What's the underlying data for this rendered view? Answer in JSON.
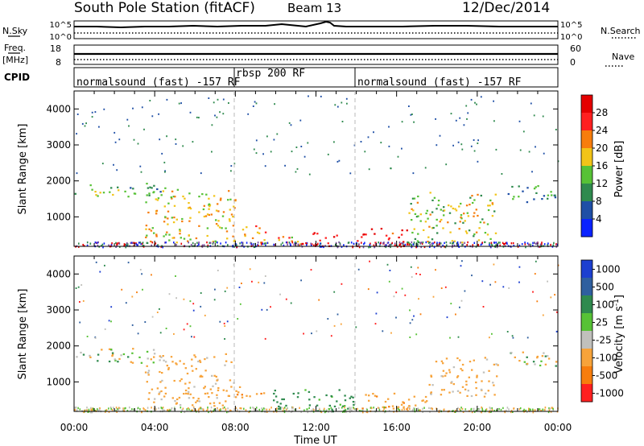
{
  "header": {
    "title": "South Pole Station (fitACF)",
    "beam": "Beam 13",
    "date": "12/Dec/2014"
  },
  "noise_panel": {
    "left_label": "N.Sky",
    "right_label": "N.Search",
    "left_ticks": [
      "10^5",
      "10^0"
    ],
    "right_ticks": [
      "10^5",
      "10^0"
    ]
  },
  "freq_panel": {
    "left_label": "Freq.",
    "left_unit": "[MHz]",
    "right_label": "Nave",
    "left_ticks": [
      "18",
      "8"
    ],
    "right_ticks": [
      "60",
      "0"
    ]
  },
  "cpid": {
    "label": "CPID",
    "segments": [
      {
        "label": "normalsound (fast) -157 RF",
        "start_hour": 0,
        "end_hour": 8
      },
      {
        "label": "rbsp 200 RF",
        "start_hour": 8,
        "end_hour": 14
      },
      {
        "label": "normalsound (fast) -157 RF",
        "start_hour": 14,
        "end_hour": 24
      }
    ]
  },
  "chart_data": [
    {
      "type": "heatmap",
      "quantity": "Power",
      "ylabel": "Slant Range [km]",
      "xlabel": "",
      "ylim": [
        180,
        4500
      ],
      "yticks": [
        1000,
        2000,
        3000,
        4000
      ],
      "colorbar_label": "Power [dB]",
      "colorbar_ticks": [
        "4",
        "8",
        "12",
        "16",
        "20",
        "24",
        "28"
      ],
      "colorbar_range": [
        0,
        32
      ],
      "colors": [
        "#0a22ff",
        "#1f4fa6",
        "#2f8a4e",
        "#57c236",
        "#f2c418",
        "#f77d0d",
        "#ff2020",
        "#e40000"
      ],
      "regions": [
        {
          "t": [
            0.0,
            4.5
          ],
          "r": [
            1550,
            1950
          ],
          "v": 13
        },
        {
          "t": [
            3.5,
            8.0
          ],
          "r": [
            300,
            1800
          ],
          "v": 18
        },
        {
          "t": [
            7.8,
            9.5
          ],
          "r": [
            300,
            800
          ],
          "v": 22
        },
        {
          "t": [
            9.5,
            11.5
          ],
          "r": [
            200,
            500
          ],
          "v": 20
        },
        {
          "t": [
            11.5,
            13.0
          ],
          "r": [
            200,
            600
          ],
          "v": 28
        },
        {
          "t": [
            14.0,
            16.5
          ],
          "r": [
            200,
            700
          ],
          "v": 27
        },
        {
          "t": [
            16.5,
            21.0
          ],
          "r": [
            300,
            1700
          ],
          "v": 16
        },
        {
          "t": [
            21.5,
            24.0
          ],
          "r": [
            1400,
            1900
          ],
          "v": 11
        }
      ]
    },
    {
      "type": "heatmap",
      "quantity": "Velocity",
      "ylabel": "Slant Range [km]",
      "xlabel": "Time UT",
      "xticks": [
        "00:00",
        "04:00",
        "08:00",
        "12:00",
        "16:00",
        "20:00",
        "00:00"
      ],
      "xlim": [
        0,
        24
      ],
      "ylim": [
        180,
        4500
      ],
      "yticks": [
        1000,
        2000,
        3000,
        4000
      ],
      "colorbar_label": "Velocity [m s^-1]",
      "colorbar_ticks": [
        "1000",
        "500",
        "100",
        "25",
        "-25",
        "-100",
        "-500",
        "-1000"
      ],
      "colors": [
        "#1c3fd0",
        "#2f5f9f",
        "#2f8a4e",
        "#57c236",
        "#c0c0bc",
        "#f7a33a",
        "#f77d0d",
        "#ff2020"
      ],
      "regions": [
        {
          "t": [
            0.0,
            4.5
          ],
          "r": [
            1550,
            1950
          ],
          "v": 0
        },
        {
          "t": [
            3.5,
            8.0
          ],
          "r": [
            300,
            1800
          ],
          "v": -150
        },
        {
          "t": [
            8.0,
            9.5
          ],
          "r": [
            500,
            900
          ],
          "v": -300
        },
        {
          "t": [
            9.5,
            14.0
          ],
          "r": [
            200,
            800
          ],
          "v": 150
        },
        {
          "t": [
            14.0,
            17.5
          ],
          "r": [
            200,
            700
          ],
          "v": -200
        },
        {
          "t": [
            17.5,
            21.0
          ],
          "r": [
            600,
            1700
          ],
          "v": -150
        },
        {
          "t": [
            21.5,
            24.0
          ],
          "r": [
            1400,
            1900
          ],
          "v": 0
        }
      ]
    }
  ]
}
